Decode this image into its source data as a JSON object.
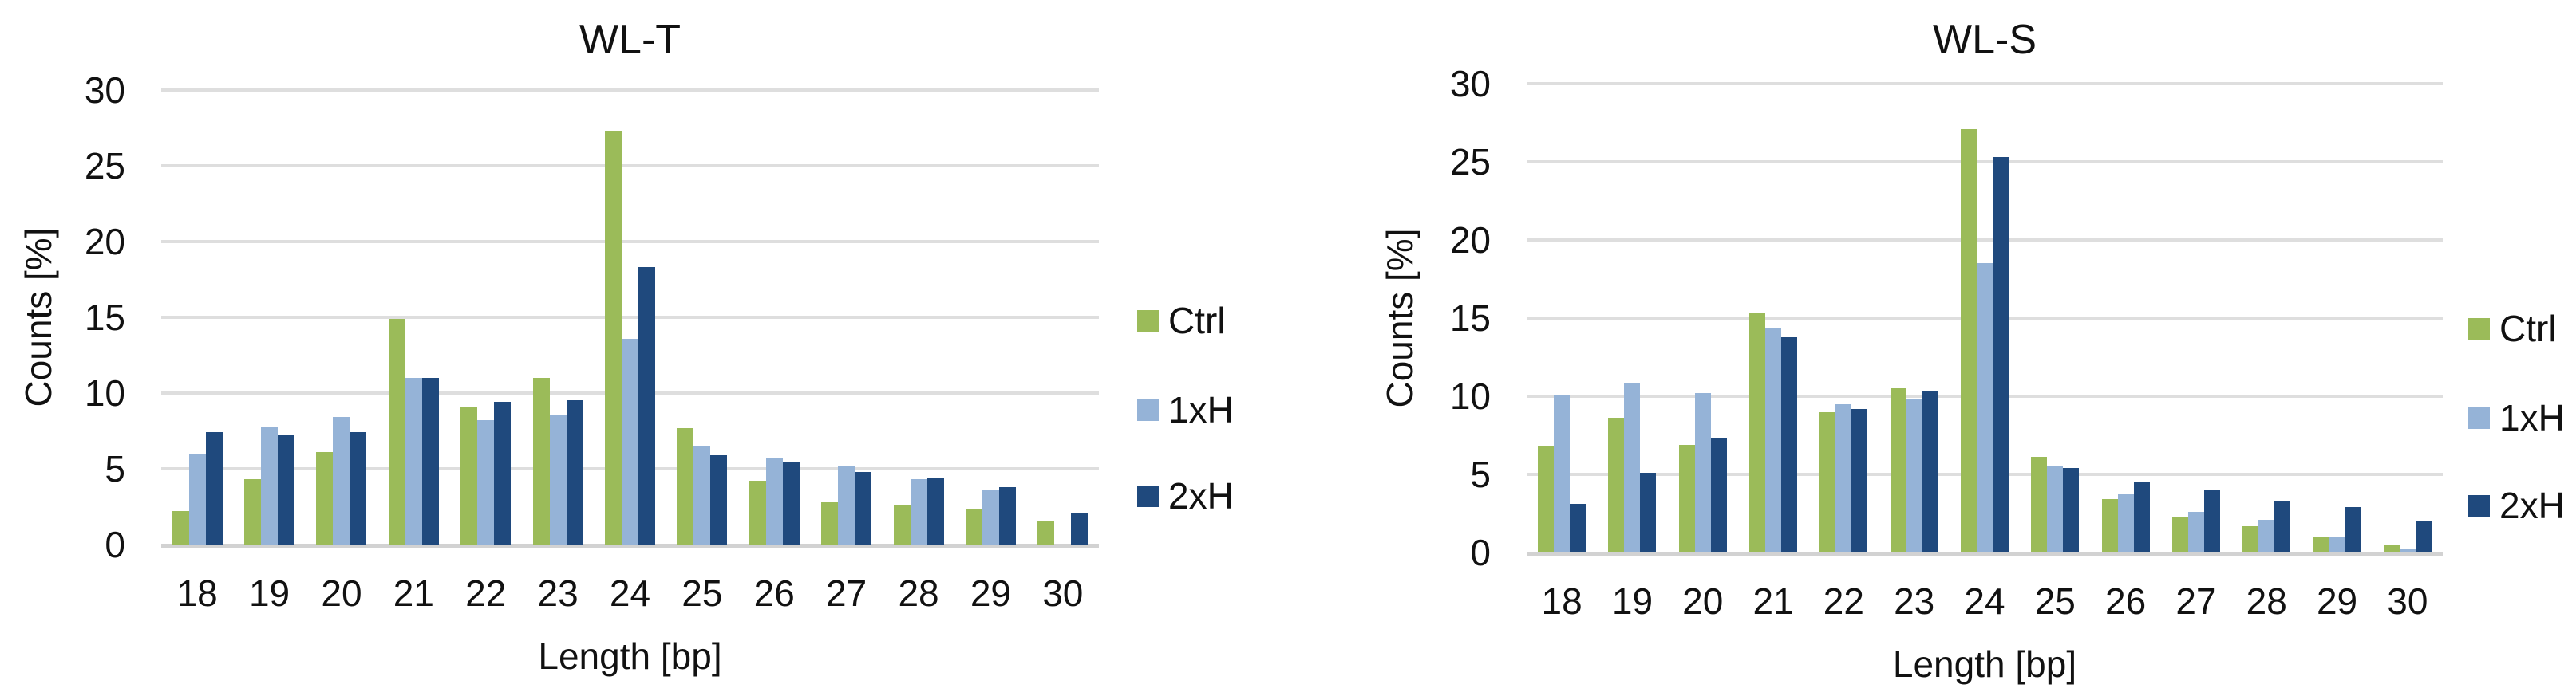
{
  "figure": {
    "background": "#ffffff",
    "text_color": "#111111",
    "gridline_color": "#dedede",
    "baseline_color": "#d2d2d2"
  },
  "legend": {
    "entries": [
      {
        "label": "Ctrl",
        "color": "#9bbb59"
      },
      {
        "label": "1xH",
        "color": "#95b3d7"
      },
      {
        "label": "2xH",
        "color": "#1f497d"
      }
    ]
  },
  "chart_data": [
    {
      "type": "bar",
      "title": "WL-T",
      "xlabel": "Length [bp]",
      "ylabel": "Counts [%]",
      "ylim": [
        0,
        30
      ],
      "yticks": [
        0,
        5,
        10,
        15,
        20,
        25,
        30
      ],
      "grid": true,
      "legend_position": "right",
      "categories": [
        "18",
        "19",
        "20",
        "21",
        "22",
        "23",
        "24",
        "25",
        "26",
        "27",
        "28",
        "29",
        "30"
      ],
      "series": [
        {
          "name": "Ctrl",
          "color": "#9bbb59",
          "values": [
            2.2,
            4.3,
            6.1,
            14.9,
            9.1,
            11.0,
            27.3,
            7.7,
            4.2,
            2.8,
            2.6,
            2.3,
            1.6
          ]
        },
        {
          "name": "1xH",
          "color": "#95b3d7",
          "values": [
            6.0,
            7.8,
            8.4,
            11.0,
            8.2,
            8.6,
            13.6,
            6.5,
            5.7,
            5.2,
            4.3,
            3.6,
            0
          ]
        },
        {
          "name": "2xH",
          "color": "#1f497d",
          "values": [
            7.4,
            7.2,
            7.4,
            11.0,
            9.4,
            9.5,
            18.3,
            5.9,
            5.4,
            4.8,
            4.4,
            3.8,
            2.1
          ]
        }
      ]
    },
    {
      "type": "bar",
      "title": "WL-S",
      "xlabel": "Length [bp]",
      "ylabel": "Counts [%]",
      "ylim": [
        0,
        30
      ],
      "yticks": [
        0,
        5,
        10,
        15,
        20,
        25,
        30
      ],
      "grid": true,
      "legend_position": "right",
      "categories": [
        "18",
        "19",
        "20",
        "21",
        "22",
        "23",
        "24",
        "25",
        "26",
        "27",
        "28",
        "29",
        "30"
      ],
      "series": [
        {
          "name": "Ctrl",
          "color": "#9bbb59",
          "values": [
            6.8,
            8.6,
            6.9,
            15.3,
            9.0,
            10.5,
            27.1,
            6.1,
            3.4,
            2.3,
            1.7,
            1.0,
            0.5
          ]
        },
        {
          "name": "1xH",
          "color": "#95b3d7",
          "values": [
            10.1,
            10.8,
            10.2,
            14.4,
            9.5,
            9.8,
            18.5,
            5.5,
            3.7,
            2.6,
            2.1,
            1.0,
            0.2
          ]
        },
        {
          "name": "2xH",
          "color": "#1f497d",
          "values": [
            3.1,
            5.1,
            7.3,
            13.8,
            9.2,
            10.3,
            25.3,
            5.4,
            4.5,
            4.0,
            3.3,
            2.9,
            2.0
          ]
        }
      ]
    }
  ]
}
